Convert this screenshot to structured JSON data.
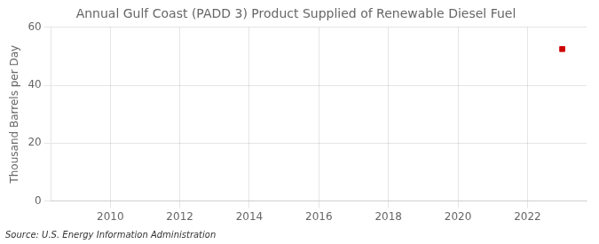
{
  "chart_data": {
    "type": "scatter",
    "title": "Annual Gulf Coast (PADD 3) Product Supplied of Renewable Diesel Fuel",
    "y_label": "Thousand Barrels per Day",
    "annotations": [
      "Source: U.S. Energy Information Administration"
    ],
    "x": [
      2023
    ],
    "values": [
      52.5
    ],
    "color": "#cc0000",
    "marker": "square",
    "xlim": [
      2008.3,
      2023.7
    ],
    "xticks": [
      2010,
      2012,
      2014,
      2016,
      2018,
      2020,
      2022
    ],
    "ylim": [
      0,
      60
    ],
    "yticks": [
      0,
      20,
      40,
      60
    ],
    "grid": true
  }
}
